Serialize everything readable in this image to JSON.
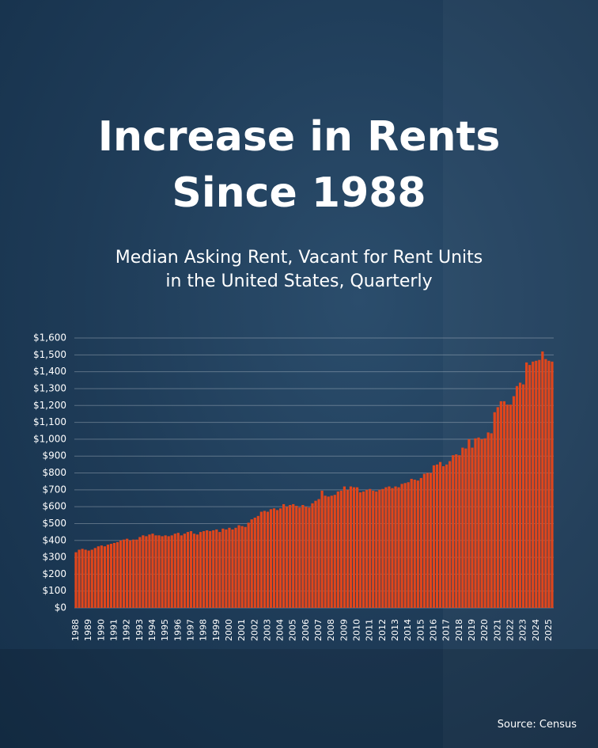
{
  "chart_data": {
    "type": "bar",
    "title": [
      "Increase in Rents",
      "Since 1988"
    ],
    "subtitle": [
      "Median Asking Rent, Vacant for Rent Units",
      "in the United States, Quarterly"
    ],
    "source": "Source: Census",
    "color": "#e0461c",
    "grid": true,
    "ylim": [
      0,
      1600
    ],
    "yticks": [
      {
        "value": 0,
        "label": "$0"
      },
      {
        "value": 100,
        "label": "$100"
      },
      {
        "value": 200,
        "label": "$200"
      },
      {
        "value": 300,
        "label": "$300"
      },
      {
        "value": 400,
        "label": "$400"
      },
      {
        "value": 500,
        "label": "$500"
      },
      {
        "value": 600,
        "label": "$600"
      },
      {
        "value": 700,
        "label": "$700"
      },
      {
        "value": 800,
        "label": "$800"
      },
      {
        "value": 900,
        "label": "$900"
      },
      {
        "value": 1000,
        "label": "$1,000"
      },
      {
        "value": 1100,
        "label": "$1,100"
      },
      {
        "value": 1200,
        "label": "$1,200"
      },
      {
        "value": 1300,
        "label": "$1,300"
      },
      {
        "value": 1400,
        "label": "$1,400"
      },
      {
        "value": 1500,
        "label": "$1,500"
      },
      {
        "value": 1600,
        "label": "$1,600"
      }
    ],
    "categories": [
      "1988",
      null,
      null,
      null,
      "1989",
      null,
      null,
      null,
      "1990",
      null,
      null,
      null,
      "1991",
      null,
      null,
      null,
      "1992",
      null,
      null,
      null,
      "1993",
      null,
      null,
      null,
      "1994",
      null,
      null,
      null,
      "1995",
      null,
      null,
      null,
      "1996",
      null,
      null,
      null,
      "1997",
      null,
      null,
      null,
      "1998",
      null,
      null,
      null,
      "1999",
      null,
      null,
      null,
      "2000",
      null,
      null,
      null,
      "2001",
      null,
      null,
      null,
      "2002",
      null,
      null,
      null,
      "2003",
      null,
      null,
      null,
      "2004",
      null,
      null,
      null,
      "2005",
      null,
      null,
      null,
      "2006",
      null,
      null,
      null,
      "2007",
      null,
      null,
      null,
      "2008",
      null,
      null,
      null,
      "2009",
      null,
      null,
      null,
      "2010",
      null,
      null,
      null,
      "2011",
      null,
      null,
      null,
      "2012",
      null,
      null,
      null,
      "2013",
      null,
      null,
      null,
      "2014",
      null,
      null,
      null,
      "2015",
      null,
      null,
      null,
      "2016",
      null,
      null,
      null,
      "2017",
      null,
      null,
      null,
      "2018",
      null,
      null,
      null,
      "2019",
      null,
      null,
      null,
      "2020",
      null,
      null,
      null,
      "2021",
      null,
      null,
      null,
      "2022",
      null,
      null,
      null,
      "2023",
      null,
      null,
      null,
      "2024",
      null,
      null,
      null,
      "2025",
      null
    ],
    "values": [
      330,
      345,
      350,
      345,
      340,
      345,
      355,
      365,
      370,
      365,
      375,
      380,
      385,
      390,
      400,
      405,
      410,
      400,
      405,
      405,
      420,
      430,
      425,
      435,
      440,
      430,
      430,
      425,
      430,
      425,
      430,
      440,
      445,
      430,
      440,
      450,
      455,
      440,
      435,
      450,
      455,
      460,
      455,
      460,
      465,
      450,
      470,
      465,
      475,
      465,
      475,
      490,
      485,
      480,
      505,
      525,
      535,
      545,
      570,
      575,
      570,
      585,
      590,
      580,
      590,
      615,
      600,
      610,
      615,
      605,
      595,
      610,
      600,
      595,
      620,
      635,
      645,
      695,
      665,
      660,
      665,
      670,
      690,
      695,
      720,
      700,
      720,
      715,
      715,
      685,
      690,
      700,
      705,
      695,
      690,
      700,
      705,
      715,
      720,
      710,
      720,
      715,
      735,
      740,
      745,
      765,
      760,
      755,
      770,
      795,
      800,
      800,
      845,
      850,
      865,
      840,
      850,
      870,
      905,
      910,
      905,
      950,
      945,
      1000,
      950,
      1005,
      1010,
      1000,
      1005,
      1040,
      1035,
      1160,
      1190,
      1225,
      1225,
      1205,
      1205,
      1255,
      1315,
      1335,
      1325,
      1455,
      1440,
      1460,
      1465,
      1470,
      1520,
      1475,
      1465,
      1460
    ]
  }
}
